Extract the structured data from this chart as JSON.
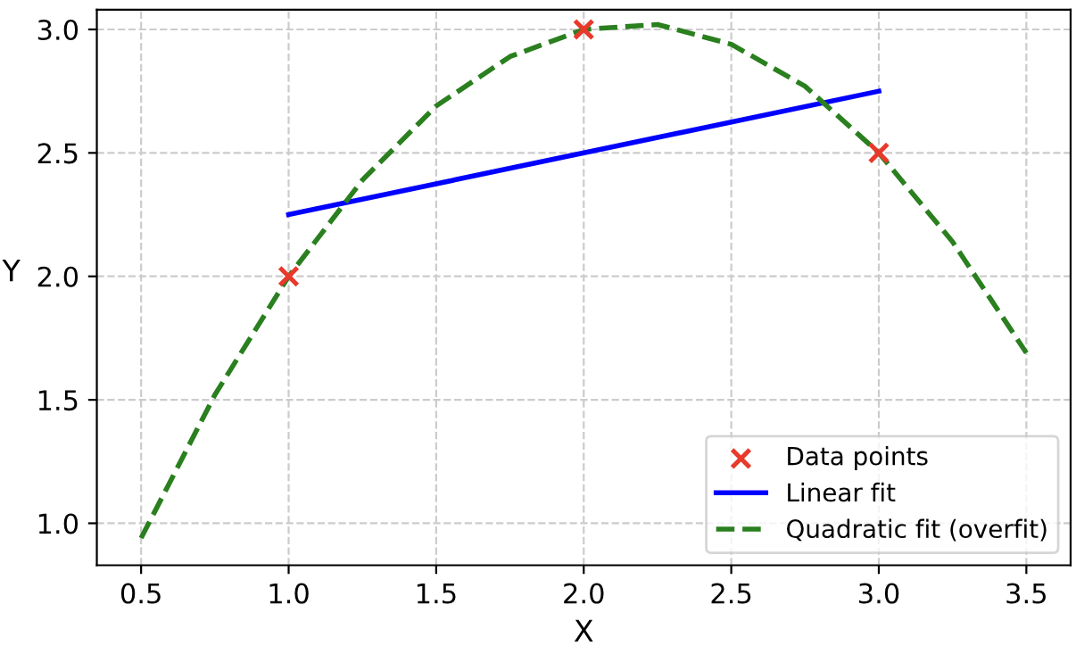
{
  "chart_data": {
    "type": "scatter",
    "xlabel": "X",
    "ylabel": "Y",
    "xlim": [
      0.35,
      3.65
    ],
    "ylim": [
      0.83,
      3.08
    ],
    "xticks": [
      {
        "value": 0.5,
        "label": "0.5"
      },
      {
        "value": 1.0,
        "label": "1.0"
      },
      {
        "value": 1.5,
        "label": "1.5"
      },
      {
        "value": 2.0,
        "label": "2.0"
      },
      {
        "value": 2.5,
        "label": "2.5"
      },
      {
        "value": 3.0,
        "label": "3.0"
      },
      {
        "value": 3.5,
        "label": "3.5"
      }
    ],
    "yticks": [
      {
        "value": 1.0,
        "label": "1.0"
      },
      {
        "value": 1.5,
        "label": "1.5"
      },
      {
        "value": 2.0,
        "label": "2.0"
      },
      {
        "value": 2.5,
        "label": "2.5"
      },
      {
        "value": 3.0,
        "label": "3.0"
      }
    ],
    "grid": true,
    "legend": "bottom right",
    "series": [
      {
        "name": "Data points",
        "marker": "cross",
        "color": "#e8392b",
        "x": [
          1,
          2,
          3
        ],
        "values": [
          2.0,
          3.0,
          2.5
        ]
      },
      {
        "name": "Linear fit",
        "type": "line",
        "line_style": "solid",
        "color": "#0000ff",
        "x": [
          1,
          3
        ],
        "values": [
          2.25,
          2.75
        ]
      },
      {
        "name": "Quadratic fit (overfit)",
        "type": "line",
        "line_style": "dashed",
        "color": "#2a7f1e",
        "x": [
          0.5,
          0.75,
          1.0,
          1.25,
          1.5,
          1.75,
          2.0,
          2.25,
          2.5,
          2.75,
          3.0,
          3.25,
          3.5
        ],
        "values": [
          0.94,
          1.52,
          2.0,
          2.39,
          2.69,
          2.89,
          3.0,
          3.02,
          2.94,
          2.77,
          2.5,
          2.14,
          1.69
        ]
      }
    ]
  }
}
